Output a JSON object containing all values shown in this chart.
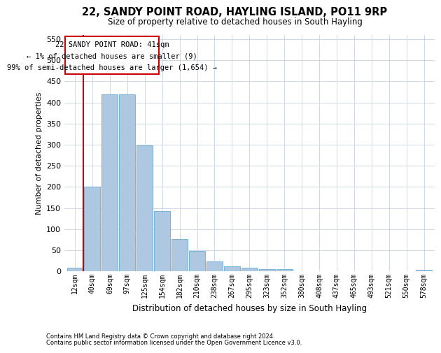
{
  "title": "22, SANDY POINT ROAD, HAYLING ISLAND, PO11 9RP",
  "subtitle": "Size of property relative to detached houses in South Hayling",
  "xlabel": "Distribution of detached houses by size in South Hayling",
  "ylabel": "Number of detached properties",
  "categories": [
    "12sqm",
    "40sqm",
    "69sqm",
    "97sqm",
    "125sqm",
    "154sqm",
    "182sqm",
    "210sqm",
    "238sqm",
    "267sqm",
    "295sqm",
    "323sqm",
    "352sqm",
    "380sqm",
    "408sqm",
    "437sqm",
    "465sqm",
    "493sqm",
    "521sqm",
    "550sqm",
    "578sqm"
  ],
  "values": [
    8,
    200,
    420,
    420,
    298,
    143,
    77,
    48,
    23,
    12,
    8,
    6,
    6,
    1,
    0,
    0,
    0,
    0,
    0,
    0,
    3
  ],
  "bar_color": "#adc8e0",
  "bar_edge_color": "#6aaad4",
  "annotation_box_color": "#cc0000",
  "annotation_text_line1": "22 SANDY POINT ROAD: 41sqm",
  "annotation_text_line2": "← 1% of detached houses are smaller (9)",
  "annotation_text_line3": "99% of semi-detached houses are larger (1,654) →",
  "ylim": [
    0,
    560
  ],
  "yticks": [
    0,
    50,
    100,
    150,
    200,
    250,
    300,
    350,
    400,
    450,
    500,
    550
  ],
  "footer_line1": "Contains HM Land Registry data © Crown copyright and database right 2024.",
  "footer_line2": "Contains public sector information licensed under the Open Government Licence v3.0.",
  "background_color": "#ffffff",
  "grid_color": "#d0d8e8"
}
